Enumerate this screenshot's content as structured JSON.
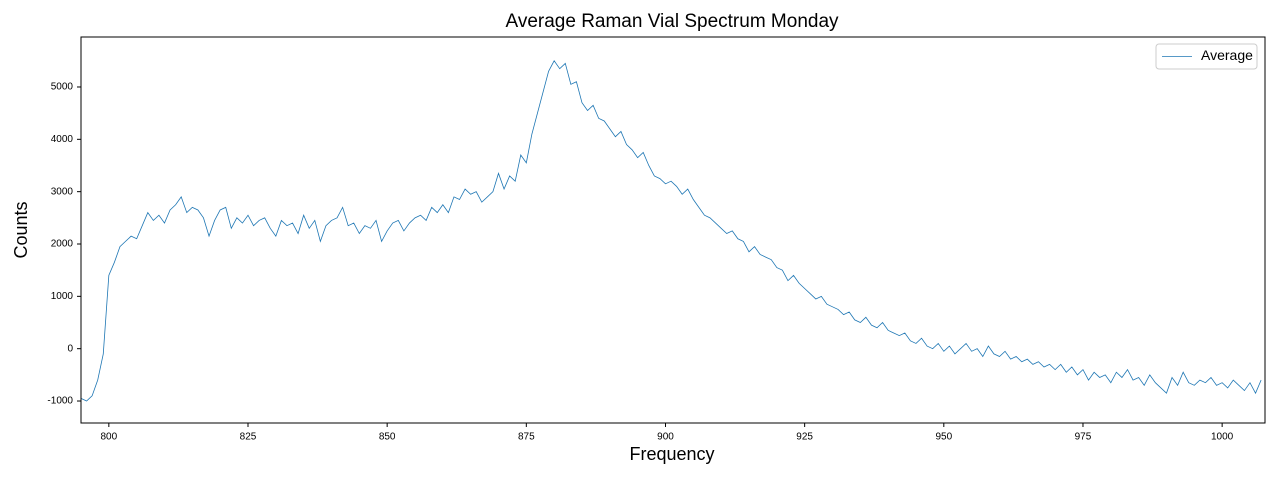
{
  "chart_data": {
    "type": "line",
    "title": "Average Raman Vial Spectrum Monday",
    "xlabel": "Frequency",
    "ylabel": "Counts",
    "x": [
      795,
      796,
      797,
      798,
      799,
      800,
      801,
      802,
      803,
      804,
      805,
      806,
      807,
      808,
      809,
      810,
      811,
      812,
      813,
      814,
      815,
      816,
      817,
      818,
      819,
      820,
      821,
      822,
      823,
      824,
      825,
      826,
      827,
      828,
      829,
      830,
      831,
      832,
      833,
      834,
      835,
      836,
      837,
      838,
      839,
      840,
      841,
      842,
      843,
      844,
      845,
      846,
      847,
      848,
      849,
      850,
      851,
      852,
      853,
      854,
      855,
      856,
      857,
      858,
      859,
      860,
      861,
      862,
      863,
      864,
      865,
      866,
      867,
      868,
      869,
      870,
      871,
      872,
      873,
      874,
      875,
      876,
      877,
      878,
      879,
      880,
      881,
      882,
      883,
      884,
      885,
      886,
      887,
      888,
      889,
      890,
      891,
      892,
      893,
      894,
      895,
      896,
      897,
      898,
      899,
      900,
      901,
      902,
      903,
      904,
      905,
      906,
      907,
      908,
      909,
      910,
      911,
      912,
      913,
      914,
      915,
      916,
      917,
      918,
      919,
      920,
      921,
      922,
      923,
      924,
      925,
      926,
      927,
      928,
      929,
      930,
      931,
      932,
      933,
      934,
      935,
      936,
      937,
      938,
      939,
      940,
      941,
      942,
      943,
      944,
      945,
      946,
      947,
      948,
      949,
      950,
      951,
      952,
      953,
      954,
      955,
      956,
      957,
      958,
      959,
      960,
      961,
      962,
      963,
      964,
      965,
      966,
      967,
      968,
      969,
      970,
      971,
      972,
      973,
      974,
      975,
      976,
      977,
      978,
      979,
      980,
      981,
      982,
      983,
      984,
      985,
      986,
      987,
      988,
      989,
      990,
      991,
      992,
      993,
      994,
      995,
      996,
      997,
      998,
      999,
      1000,
      1001,
      1002,
      1003,
      1004,
      1005,
      1006,
      1007
    ],
    "series": [
      {
        "name": "Average",
        "color": "#1f77b4",
        "values": [
          -950,
          -1000,
          -900,
          -600,
          -100,
          1400,
          1650,
          1950,
          2050,
          2150,
          2100,
          2350,
          2600,
          2450,
          2550,
          2400,
          2650,
          2750,
          2900,
          2600,
          2700,
          2650,
          2500,
          2150,
          2450,
          2650,
          2700,
          2300,
          2500,
          2400,
          2550,
          2350,
          2450,
          2500,
          2300,
          2150,
          2450,
          2350,
          2400,
          2200,
          2550,
          2300,
          2450,
          2050,
          2350,
          2450,
          2500,
          2700,
          2350,
          2400,
          2200,
          2350,
          2300,
          2450,
          2050,
          2250,
          2400,
          2450,
          2250,
          2400,
          2500,
          2550,
          2450,
          2700,
          2600,
          2750,
          2600,
          2900,
          2850,
          3050,
          2950,
          3000,
          2800,
          2900,
          3000,
          3350,
          3050,
          3300,
          3200,
          3700,
          3550,
          4100,
          4500,
          4900,
          5300,
          5500,
          5350,
          5450,
          5050,
          5100,
          4700,
          4550,
          4650,
          4400,
          4350,
          4200,
          4050,
          4150,
          3900,
          3800,
          3650,
          3750,
          3500,
          3300,
          3250,
          3150,
          3200,
          3100,
          2950,
          3050,
          2850,
          2700,
          2550,
          2500,
          2400,
          2300,
          2200,
          2250,
          2100,
          2050,
          1850,
          1950,
          1800,
          1750,
          1700,
          1550,
          1500,
          1300,
          1400,
          1250,
          1150,
          1050,
          950,
          1000,
          850,
          800,
          750,
          650,
          700,
          550,
          500,
          600,
          450,
          400,
          500,
          350,
          300,
          250,
          300,
          150,
          100,
          200,
          50,
          0,
          100,
          -50,
          50,
          -100,
          0,
          100,
          -50,
          0,
          -150,
          50,
          -100,
          -150,
          -50,
          -200,
          -150,
          -250,
          -200,
          -300,
          -250,
          -350,
          -300,
          -400,
          -300,
          -450,
          -350,
          -500,
          -400,
          -600,
          -450,
          -550,
          -500,
          -650,
          -450,
          -550,
          -400,
          -600,
          -550,
          -700,
          -500,
          -650,
          -750,
          -850,
          -550,
          -700,
          -450,
          -650,
          -700,
          -600,
          -650,
          -550,
          -700,
          -650,
          -750,
          -600,
          -700,
          -800,
          -650,
          -850,
          -600
        ]
      }
    ],
    "xlim": [
      795,
      1007.7
    ],
    "ylim": [
      -1420,
      5955
    ],
    "xticks": [
      800,
      825,
      850,
      875,
      900,
      925,
      950,
      975,
      1000
    ],
    "yticks": [
      -1000,
      0,
      1000,
      2000,
      3000,
      4000,
      5000
    ],
    "grid": false,
    "legend": "upper right"
  }
}
